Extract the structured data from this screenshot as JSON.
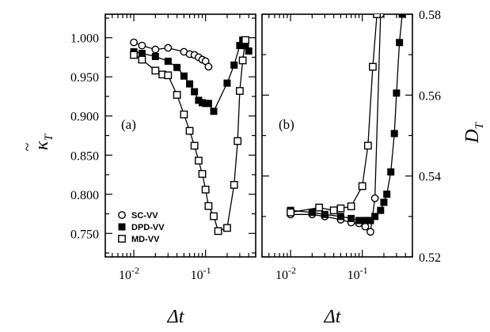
{
  "chart_data": [
    {
      "type": "line",
      "panel_label": "(a)",
      "ylabel_main": "κ",
      "ylabel_tilde": "~",
      "ylabel_sub": "T",
      "xlabel_main": "Δt",
      "x_scale": "log",
      "xlim": [
        0.004,
        0.5
      ],
      "ylim": [
        0.72,
        1.03
      ],
      "y_ticks": [
        {
          "value": 1.0,
          "label": "1.000"
        },
        {
          "value": 0.95,
          "label": "0.950"
        },
        {
          "value": 0.9,
          "label": "0.900"
        },
        {
          "value": 0.85,
          "label": "0.850"
        },
        {
          "value": 0.8,
          "label": "0.800"
        },
        {
          "value": 0.75,
          "label": "0.750"
        }
      ],
      "x_ticks": [
        {
          "value": 0.01,
          "base": "10",
          "exp": "-2"
        },
        {
          "value": 0.1,
          "base": "10",
          "exp": "-1"
        }
      ],
      "legend": {
        "position": "bottom-left"
      },
      "series": [
        {
          "name": "SC-VV",
          "marker": "open-circle",
          "x": [
            0.01,
            0.013,
            0.02,
            0.03,
            0.05,
            0.06,
            0.07,
            0.08,
            0.09,
            0.1,
            0.11
          ],
          "y": [
            0.994,
            0.99,
            0.985,
            0.987,
            0.982,
            0.979,
            0.978,
            0.975,
            0.972,
            0.97,
            0.963
          ]
        },
        {
          "name": "DPD-VV",
          "marker": "filled-square",
          "x": [
            0.01,
            0.013,
            0.02,
            0.03,
            0.04,
            0.05,
            0.06,
            0.07,
            0.08,
            0.09,
            0.1,
            0.11,
            0.13,
            0.2,
            0.25,
            0.3,
            0.33,
            0.36,
            0.4
          ],
          "y": [
            0.982,
            0.98,
            0.976,
            0.97,
            0.962,
            0.951,
            0.941,
            0.931,
            0.92,
            0.917,
            0.916,
            0.916,
            0.906,
            0.942,
            0.965,
            0.99,
            0.997,
            0.99,
            0.983
          ]
        },
        {
          "name": "MD-VV",
          "marker": "open-square",
          "x": [
            0.01,
            0.013,
            0.02,
            0.025,
            0.03,
            0.04,
            0.05,
            0.06,
            0.07,
            0.08,
            0.09,
            0.1,
            0.11,
            0.13,
            0.15,
            0.2,
            0.25,
            0.28,
            0.3,
            0.33,
            0.36
          ],
          "y": [
            0.978,
            0.972,
            0.958,
            0.953,
            0.952,
            0.927,
            0.902,
            0.881,
            0.862,
            0.843,
            0.826,
            0.806,
            0.785,
            0.772,
            0.753,
            0.757,
            0.812,
            0.868,
            0.932,
            0.971,
            0.997
          ]
        }
      ]
    },
    {
      "type": "line",
      "panel_label": "(b)",
      "ylabel_main": "D",
      "ylabel_sub": "T",
      "xlabel_main": "Δt",
      "x_scale": "log",
      "xlim": [
        0.004,
        0.5
      ],
      "ylim": [
        0.52,
        0.58
      ],
      "y_ticks": [
        {
          "value": 0.58,
          "label": "0.58"
        },
        {
          "value": 0.56,
          "label": "0.56"
        },
        {
          "value": 0.54,
          "label": "0.54"
        },
        {
          "value": 0.52,
          "label": "0.52"
        }
      ],
      "x_ticks": [
        {
          "value": 0.01,
          "base": "10",
          "exp": "-2"
        },
        {
          "value": 0.1,
          "base": "10",
          "exp": "-1"
        }
      ],
      "series": [
        {
          "name": "SC-VV",
          "marker": "open-circle",
          "x": [
            0.01,
            0.02,
            0.03,
            0.05,
            0.07,
            0.09,
            0.11,
            0.13,
            0.15,
            0.18
          ],
          "y": [
            0.5305,
            0.5305,
            0.53,
            0.5292,
            0.5285,
            0.5283,
            0.5275,
            0.5262,
            0.5345,
            0.58
          ]
        },
        {
          "name": "DPD-VV",
          "marker": "filled-square",
          "x": [
            0.01,
            0.02,
            0.03,
            0.05,
            0.07,
            0.09,
            0.11,
            0.13,
            0.15,
            0.18,
            0.2,
            0.22,
            0.25,
            0.28,
            0.3,
            0.33,
            0.36
          ],
          "y": [
            0.5315,
            0.531,
            0.5305,
            0.53,
            0.5295,
            0.529,
            0.529,
            0.529,
            0.53,
            0.5315,
            0.5335,
            0.5355,
            0.541,
            0.5505,
            0.5605,
            0.573,
            0.58
          ]
        },
        {
          "name": "MD-VV",
          "marker": "open-square",
          "x": [
            0.01,
            0.025,
            0.04,
            0.05,
            0.07,
            0.1,
            0.12,
            0.14,
            0.16
          ],
          "y": [
            0.531,
            0.5322,
            0.5315,
            0.532,
            0.5325,
            0.5375,
            0.5475,
            0.567,
            0.58
          ]
        }
      ]
    }
  ]
}
